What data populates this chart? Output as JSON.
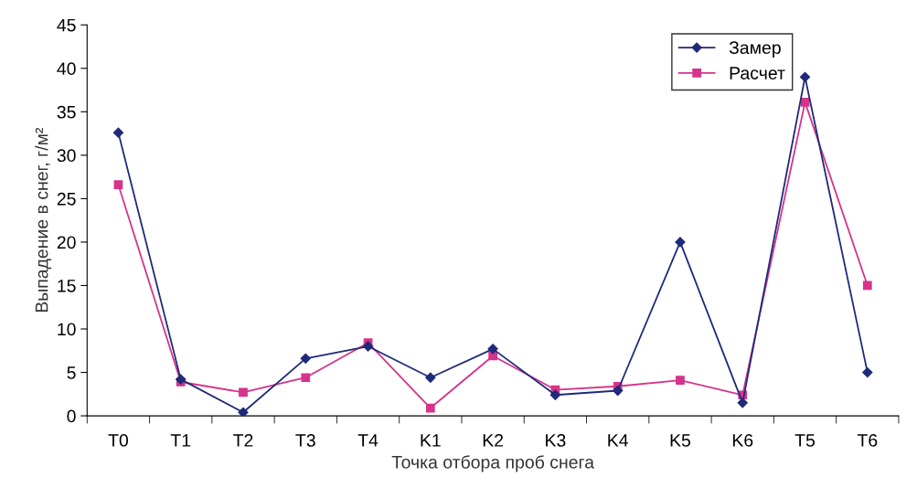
{
  "chart_data": {
    "type": "line",
    "xlabel": "Точка отбора проб снега",
    "ylabel": "Выпадение в снег, г/м²",
    "categories": [
      "T0",
      "T1",
      "T2",
      "T3",
      "T4",
      "K1",
      "K2",
      "K3",
      "K4",
      "K5",
      "K6",
      "T5",
      "T6"
    ],
    "series": [
      {
        "name": "Замер",
        "color": "#1f2a7a",
        "marker": "diamond",
        "values": [
          32.6,
          4.2,
          0.4,
          6.6,
          8.0,
          4.4,
          7.7,
          2.4,
          2.9,
          20.0,
          1.5,
          39.0,
          5.0
        ]
      },
      {
        "name": "Расчет",
        "color": "#d6338a",
        "marker": "square",
        "values": [
          26.6,
          3.9,
          2.7,
          4.4,
          8.4,
          0.9,
          6.9,
          3.0,
          3.4,
          4.1,
          2.4,
          36.1,
          15.0
        ]
      }
    ],
    "ylim": [
      0,
      45
    ],
    "yticks": [
      0,
      5,
      10,
      15,
      20,
      25,
      30,
      35,
      40,
      45
    ],
    "grid": false,
    "legend": "top right"
  }
}
